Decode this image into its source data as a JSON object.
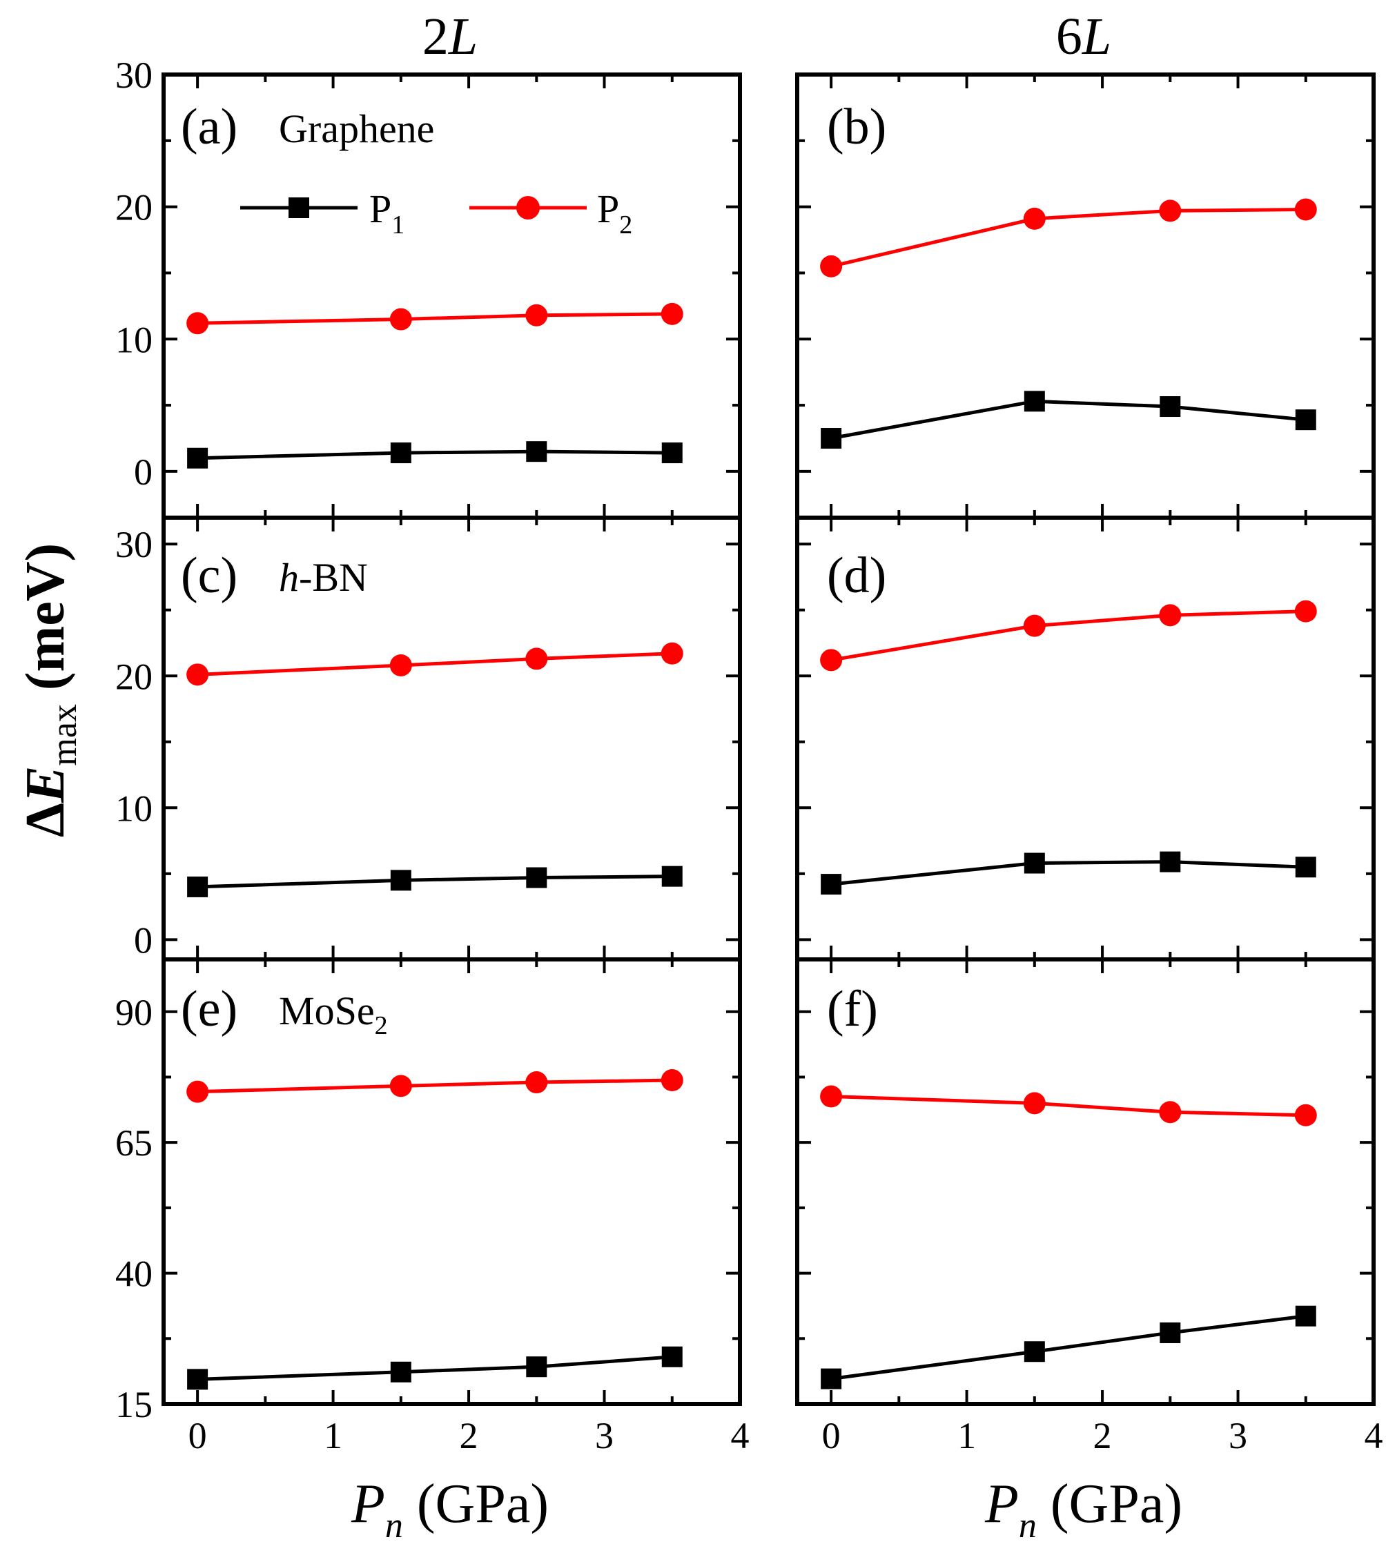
{
  "column_titles": {
    "left_base": "2",
    "left_italic": "L",
    "right_base": "6",
    "right_italic": "L"
  },
  "y_axis_label": {
    "delta": "Δ",
    "E": "E",
    "sub": "max",
    "unit": " (meV)"
  },
  "x_axis_label": {
    "P": "P",
    "sub": "n",
    "unit": " (GPa)"
  },
  "legend": {
    "p1_base": "P",
    "p1_sub": "1",
    "p1_color": "#000000",
    "p2_base": "P",
    "p2_sub": "2",
    "p2_color": "#ff0000"
  },
  "chart_data": [
    {
      "type": "line",
      "panel": "(a)",
      "material": "Graphene",
      "column": "2L",
      "x": [
        0,
        1.5,
        2.5,
        3.5
      ],
      "series": [
        {
          "name": "P1",
          "values": [
            1.0,
            1.4,
            1.5,
            1.4
          ]
        },
        {
          "name": "P2",
          "values": [
            11.2,
            11.5,
            11.8,
            11.9
          ]
        }
      ],
      "xlim": [
        -0.25,
        4
      ],
      "ylim": [
        -3.5,
        30
      ],
      "yticks": [
        0,
        10,
        20,
        30
      ],
      "ytick_labels": [
        "0",
        "10",
        "20",
        "30"
      ],
      "xticks": [
        0,
        1,
        2,
        3,
        4
      ]
    },
    {
      "type": "line",
      "panel": "(b)",
      "material": "",
      "column": "6L",
      "x": [
        0,
        1.5,
        2.5,
        3.5
      ],
      "series": [
        {
          "name": "P1",
          "values": [
            2.5,
            5.3,
            4.9,
            3.9
          ]
        },
        {
          "name": "P2",
          "values": [
            15.5,
            19.1,
            19.7,
            19.8
          ]
        }
      ],
      "xlim": [
        -0.25,
        4
      ],
      "ylim": [
        -3.5,
        30
      ],
      "yticks": [
        0,
        10,
        20,
        30
      ],
      "ytick_labels": [],
      "xticks": [
        0,
        1,
        2,
        3,
        4
      ]
    },
    {
      "type": "line",
      "panel": "(c)",
      "material_italic": "h",
      "material": "-BN",
      "column": "2L",
      "x": [
        0,
        1.5,
        2.5,
        3.5
      ],
      "series": [
        {
          "name": "P1",
          "values": [
            4.0,
            4.5,
            4.7,
            4.8
          ]
        },
        {
          "name": "P2",
          "values": [
            20.1,
            20.8,
            21.3,
            21.7
          ]
        }
      ],
      "xlim": [
        -0.25,
        4
      ],
      "ylim": [
        -1.5,
        32
      ],
      "yticks": [
        0,
        10,
        20,
        30
      ],
      "ytick_labels": [
        "0",
        "10",
        "20",
        "30"
      ],
      "xticks": [
        0,
        1,
        2,
        3,
        4
      ]
    },
    {
      "type": "line",
      "panel": "(d)",
      "material": "",
      "column": "6L",
      "x": [
        0,
        1.5,
        2.5,
        3.5
      ],
      "series": [
        {
          "name": "P1",
          "values": [
            4.2,
            5.8,
            5.9,
            5.5
          ]
        },
        {
          "name": "P2",
          "values": [
            21.2,
            23.8,
            24.6,
            24.9
          ]
        }
      ],
      "xlim": [
        -0.25,
        4
      ],
      "ylim": [
        -1.5,
        32
      ],
      "yticks": [
        0,
        10,
        20,
        30
      ],
      "ytick_labels": [],
      "xticks": [
        0,
        1,
        2,
        3,
        4
      ]
    },
    {
      "type": "line",
      "panel": "(e)",
      "material": "MoSe",
      "material_sub": "2",
      "column": "2L",
      "x": [
        0,
        1.5,
        2.5,
        3.5
      ],
      "series": [
        {
          "name": "P1",
          "values": [
            19.7,
            21.1,
            22.1,
            24.0
          ]
        },
        {
          "name": "P2",
          "values": [
            74.7,
            75.8,
            76.5,
            76.9
          ]
        }
      ],
      "xlim": [
        -0.25,
        4
      ],
      "ylim": [
        15,
        100
      ],
      "yticks": [
        15,
        40,
        65,
        90
      ],
      "ytick_labels": [
        "15",
        "40",
        "65",
        "90"
      ],
      "xticks": [
        0,
        1,
        2,
        3,
        4
      ],
      "xtick_labels": [
        "0",
        "1",
        "2",
        "3",
        "4"
      ]
    },
    {
      "type": "line",
      "panel": "(f)",
      "material": "",
      "column": "6L",
      "x": [
        0,
        1.5,
        2.5,
        3.5
      ],
      "series": [
        {
          "name": "P1",
          "values": [
            19.8,
            25.0,
            28.6,
            31.8
          ]
        },
        {
          "name": "P2",
          "values": [
            73.8,
            72.5,
            70.8,
            70.2
          ]
        }
      ],
      "xlim": [
        -0.25,
        4
      ],
      "ylim": [
        15,
        100
      ],
      "yticks": [
        15,
        40,
        65,
        90
      ],
      "ytick_labels": [],
      "xticks": [
        0,
        1,
        2,
        3,
        4
      ],
      "xtick_labels": [
        "0",
        "1",
        "2",
        "3",
        "4"
      ]
    }
  ]
}
